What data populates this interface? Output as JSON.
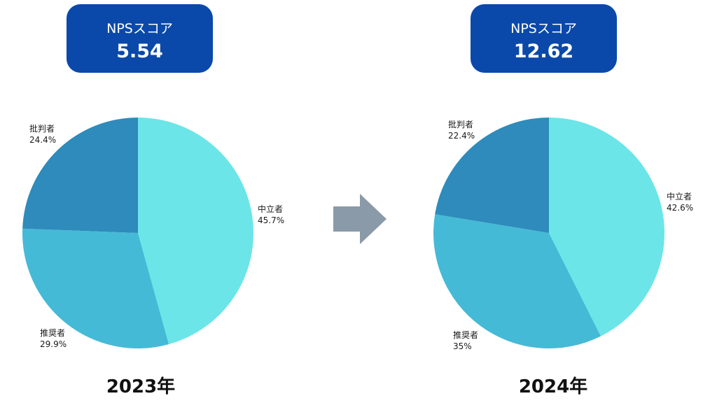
{
  "score_label": "NPSスコア",
  "chart_data": [
    {
      "type": "pie",
      "year": "2023年",
      "nps_score": "5.54",
      "slices": [
        {
          "label": "中立者",
          "value": 45.7,
          "display": "45.7%",
          "color": "#6be5e8"
        },
        {
          "label": "推奨者",
          "value": 29.9,
          "display": "29.9%",
          "color": "#45bad6"
        },
        {
          "label": "批判者",
          "value": 24.4,
          "display": "24.4%",
          "color": "#2e8bbb"
        }
      ]
    },
    {
      "type": "pie",
      "year": "2024年",
      "nps_score": "12.62",
      "slices": [
        {
          "label": "中立者",
          "value": 42.6,
          "display": "42.6%",
          "color": "#6be5e8"
        },
        {
          "label": "推奨者",
          "value": 35,
          "display": "35%",
          "color": "#45bad6"
        },
        {
          "label": "批判者",
          "value": 22.4,
          "display": "22.4%",
          "color": "#2e8bbb"
        }
      ]
    }
  ],
  "colors": {
    "score_box": "#0a49aa",
    "arrow": "#8a9aa8"
  }
}
